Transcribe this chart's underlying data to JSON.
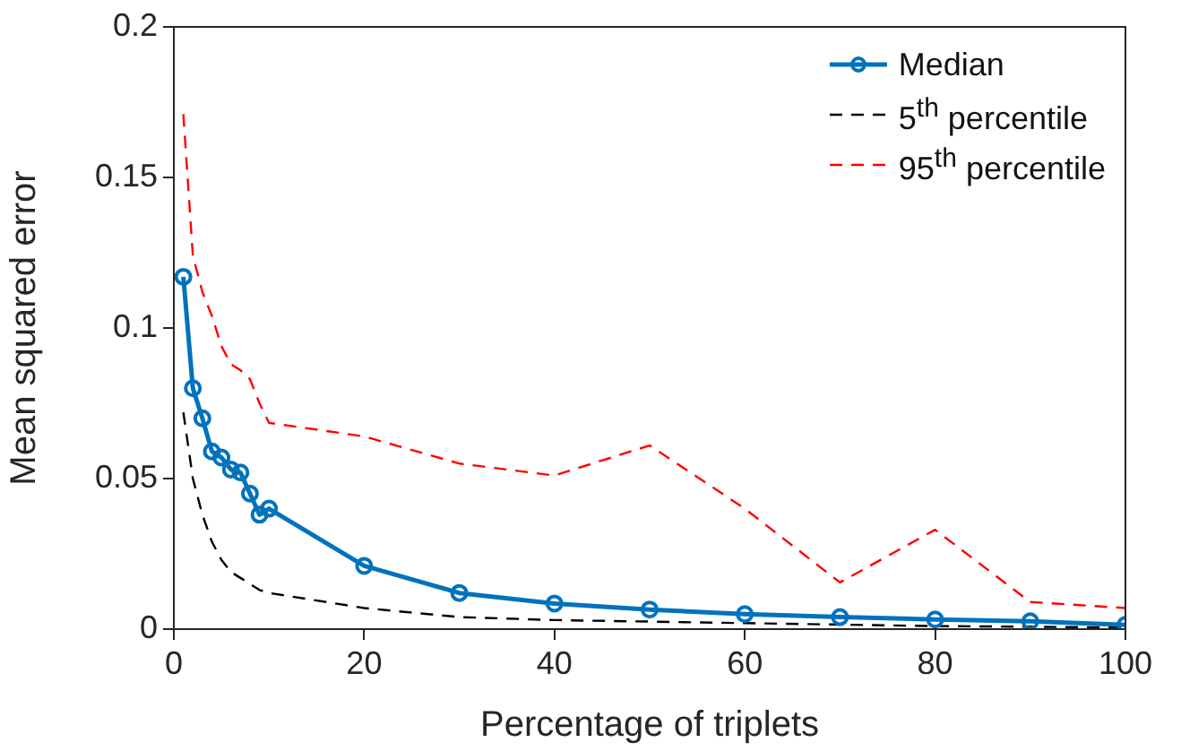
{
  "chart_data": {
    "type": "line",
    "xlabel": "Percentage of triplets",
    "ylabel": "Mean squared error",
    "x": [
      1,
      2,
      3,
      4,
      5,
      6,
      7,
      8,
      9,
      10,
      20,
      30,
      40,
      50,
      60,
      70,
      80,
      90,
      100
    ],
    "series": [
      {
        "name": "Median",
        "color": "#0072bd",
        "marker": "circle",
        "line_style": "solid",
        "values": [
          0.117,
          0.08,
          0.07,
          0.059,
          0.057,
          0.053,
          0.052,
          0.045,
          0.038,
          0.04,
          0.021,
          0.012,
          0.0085,
          0.0065,
          0.005,
          0.004,
          0.0032,
          0.0026,
          0.0014
        ]
      },
      {
        "name": "5$^{th}$ percentile",
        "color": "#000000",
        "marker": "none",
        "line_style": "dashed",
        "values": [
          0.072,
          0.05,
          0.038,
          0.029,
          0.023,
          0.019,
          0.017,
          0.015,
          0.013,
          0.012,
          0.007,
          0.004,
          0.003,
          0.0025,
          0.002,
          0.0015,
          0.001,
          0.0008,
          0.0005
        ]
      },
      {
        "name": "95$^{th}$ percentile",
        "color": "#ff0000",
        "marker": "none",
        "line_style": "dashed",
        "values": [
          0.171,
          0.124,
          0.112,
          0.104,
          0.094,
          0.088,
          0.086,
          0.083,
          0.075,
          0.0685,
          0.064,
          0.055,
          0.051,
          0.061,
          0.04,
          0.0155,
          0.033,
          0.009,
          0.007
        ]
      }
    ],
    "xlim": [
      0,
      100
    ],
    "xticks": [
      0,
      20,
      40,
      60,
      80,
      100
    ],
    "ylim": [
      0,
      0.2
    ],
    "yticks": [
      0,
      0.05,
      0.1,
      0.15,
      0.2
    ],
    "grid": false,
    "legend": "top right"
  }
}
